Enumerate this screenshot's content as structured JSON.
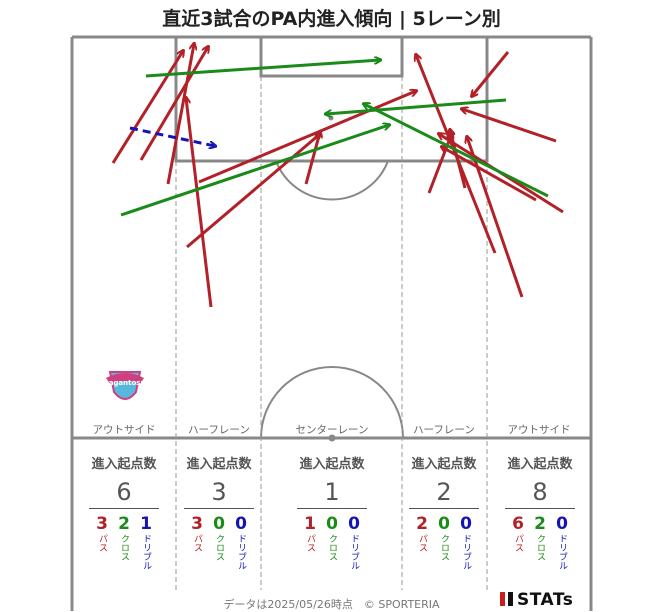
{
  "title": "直近3試合のPA内進入傾向 | 5レーン別",
  "colors": {
    "pass": "#b22028",
    "cross": "#1a8a1a",
    "dribble": "#1414b4",
    "pitch_line": "#888888"
  },
  "lanes": [
    {
      "label": "アウトサイド",
      "stat_head": "進入起点数",
      "total": "6",
      "pass": "3",
      "cross": "2",
      "dribble": "1"
    },
    {
      "label": "ハーフレーン",
      "stat_head": "進入起点数",
      "total": "3",
      "pass": "3",
      "cross": "0",
      "dribble": "0"
    },
    {
      "label": "センターレーン",
      "stat_head": "進入起点数",
      "total": "1",
      "pass": "1",
      "cross": "0",
      "dribble": "0"
    },
    {
      "label": "ハーフレーン",
      "stat_head": "進入起点数",
      "total": "2",
      "pass": "2",
      "cross": "0",
      "dribble": "0"
    },
    {
      "label": "アウトサイド",
      "stat_head": "進入起点数",
      "total": "8",
      "pass": "6",
      "cross": "2",
      "dribble": "0"
    }
  ],
  "breakdown_labels": {
    "pass": "パス",
    "cross": "クロス",
    "dribble": "ドリブル"
  },
  "club_badge_text": "sagantosu",
  "footer": "データは2025/05/26時点　© SPORTERIA",
  "logo": "STATs",
  "chart_data": {
    "type": "pitch-arrow-map",
    "title": "直近3試合のPA内進入傾向 | 5レーン別",
    "categories": [
      "アウトサイド",
      "ハーフレーン",
      "センターレーン",
      "ハーフレーン",
      "アウトサイド"
    ],
    "series": [
      {
        "name": "パス",
        "values": [
          3,
          3,
          1,
          2,
          6
        ]
      },
      {
        "name": "クロス",
        "values": [
          2,
          0,
          0,
          0,
          2
        ]
      },
      {
        "name": "ドリブル",
        "values": [
          1,
          0,
          0,
          0,
          0
        ]
      }
    ],
    "totals": [
      6,
      3,
      1,
      2,
      8
    ]
  }
}
